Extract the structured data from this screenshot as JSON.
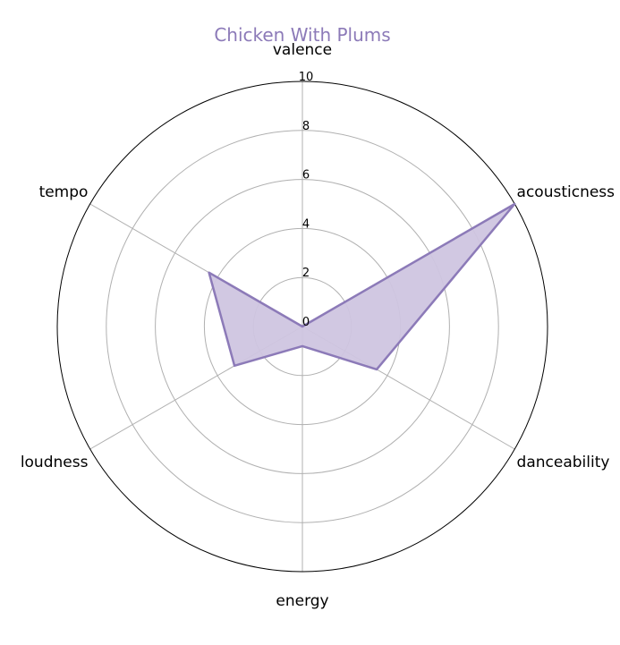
{
  "chart_data": {
    "type": "radar",
    "title": "Chicken With Plums",
    "axes": [
      "valence",
      "acousticness",
      "danceability",
      "energy",
      "loudness",
      "tempo"
    ],
    "series": [
      {
        "values": [
          0.0,
          10.0,
          3.5,
          0.8,
          3.2,
          4.4
        ]
      }
    ],
    "rlim": [
      0,
      10
    ],
    "rticks": [
      0,
      2,
      4,
      6,
      8,
      10
    ],
    "rtick_labels": [
      "0",
      "2",
      "4",
      "6",
      "8",
      "10"
    ],
    "grid": true,
    "colors": {
      "series_line": "#8c7ab8",
      "series_fill": "#cfc5e0",
      "title": "#8c7ab8",
      "grid": "#b0b0b0",
      "outer_ring": "#000000"
    }
  }
}
